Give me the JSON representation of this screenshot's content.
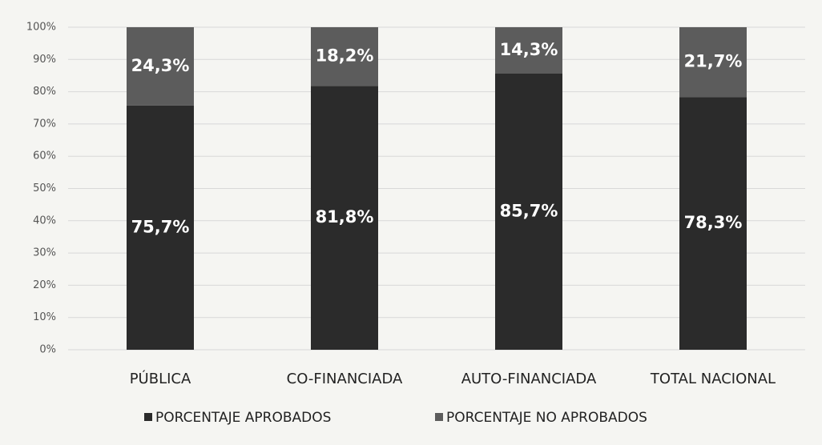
{
  "chart_data": {
    "type": "stacked_bar",
    "categories": [
      "PÚBLICA",
      "CO-FINANCIADA",
      "AUTO-FINANCIADA",
      "TOTAL NACIONAL"
    ],
    "series": [
      {
        "name": "PORCENTAJE APROBADOS",
        "color": "#2b2b2b",
        "values": [
          75.7,
          81.8,
          85.7,
          78.3
        ],
        "value_labels": [
          "75,7%",
          "81,8%",
          "85,7%",
          "78,3%"
        ]
      },
      {
        "name": "PORCENTAJE NO APROBADOS",
        "color": "#5c5c5c",
        "values": [
          24.3,
          18.2,
          14.3,
          21.7
        ],
        "value_labels": [
          "24,3%",
          "18,2%",
          "14,3%",
          "21,7%"
        ]
      }
    ],
    "ylim": [
      0,
      100
    ],
    "yticks": [
      {
        "value": 0,
        "label": "0%"
      },
      {
        "value": 10,
        "label": "10%"
      },
      {
        "value": 20,
        "label": "20%"
      },
      {
        "value": 30,
        "label": "30%"
      },
      {
        "value": 40,
        "label": "40%"
      },
      {
        "value": 50,
        "label": "50%"
      },
      {
        "value": 60,
        "label": "60%"
      },
      {
        "value": 70,
        "label": "70%"
      },
      {
        "value": 80,
        "label": "80%"
      },
      {
        "value": 90,
        "label": "90%"
      },
      {
        "value": 100,
        "label": "100%"
      }
    ],
    "grid": true,
    "legend": "bottom"
  }
}
